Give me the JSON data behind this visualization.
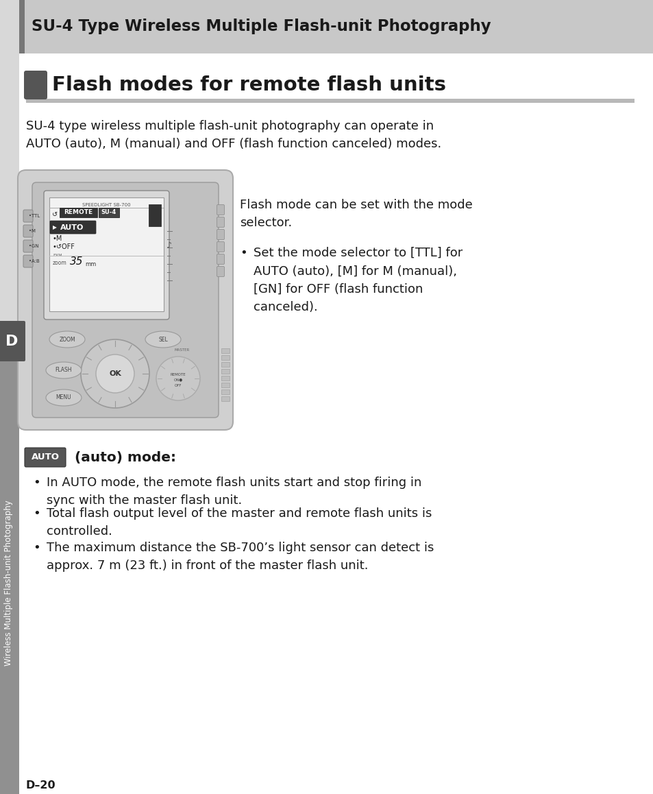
{
  "page_bg": "#ffffff",
  "header_bg": "#c8c8c8",
  "header_text": "SU-4 Type Wireless Multiple Flash-unit Photography",
  "header_text_color": "#1a1a1a",
  "section_title": "Flash modes for remote flash units",
  "section_title_color": "#1a1a1a",
  "section_rule_color": "#b0b0b0",
  "body_text_1": "SU-4 type wireless multiple flash-unit photography can operate in\nAUTO (auto), M (manual) and OFF (flash function canceled) modes.",
  "body_text_color": "#1a1a1a",
  "right_para_1": "Flash mode can be set with the mode\nselector.",
  "right_bullet_1": "Set the mode selector to [TTL] for\nAUTO (auto), [M] for M (manual),\n[GN] for OFF (flash function\ncanceled).",
  "auto_section_label": " (auto) mode:",
  "auto_bullet_1": "In AUTO mode, the remote flash units start and stop firing in\nsync with the master flash unit.",
  "auto_bullet_2": "Total flash output level of the master and remote flash units is\ncontrolled.",
  "auto_bullet_3": "The maximum distance the SB-700’s light sensor can detect is\napprox. 7 m (23 ft.) in front of the master flash unit.",
  "sidebar_text": "Wireless Multiple Flash-unit Photography",
  "page_number": "D–20"
}
